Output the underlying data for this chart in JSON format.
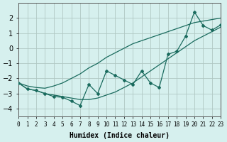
{
  "xlabel": "Humidex (Indice chaleur)",
  "ylabel": "",
  "background_color": "#d6f0ee",
  "grid_color": "#b0c8c4",
  "line_color": "#1a6b5e",
  "xlim": [
    0,
    23
  ],
  "ylim": [
    -4.5,
    3
  ],
  "x_data": [
    0,
    1,
    2,
    3,
    4,
    5,
    6,
    7,
    8,
    9,
    10,
    11,
    12,
    13,
    14,
    15,
    16,
    17,
    18,
    19,
    20,
    21,
    22,
    23
  ],
  "y_main": [
    -2.3,
    -2.7,
    -2.8,
    -3.0,
    -3.2,
    -3.25,
    -3.5,
    -3.8,
    -2.4,
    -3.0,
    -1.5,
    -1.8,
    -2.1,
    -2.4,
    -1.5,
    -2.3,
    -2.6,
    -0.4,
    -0.2,
    0.8,
    2.4,
    1.5,
    1.2,
    1.55
  ],
  "y_upper": [
    -2.3,
    -2.5,
    -2.6,
    -2.65,
    -2.5,
    -2.3,
    -2.0,
    -1.7,
    -1.3,
    -1.0,
    -0.6,
    -0.3,
    0.0,
    0.3,
    0.5,
    0.7,
    0.9,
    1.1,
    1.3,
    1.5,
    1.7,
    1.8,
    1.9,
    2.0
  ],
  "y_lower": [
    -2.3,
    -2.7,
    -2.8,
    -3.0,
    -3.1,
    -3.2,
    -3.3,
    -3.4,
    -3.4,
    -3.3,
    -3.1,
    -2.9,
    -2.6,
    -2.3,
    -1.9,
    -1.5,
    -1.1,
    -0.7,
    -0.3,
    0.1,
    0.5,
    0.8,
    1.1,
    1.4
  ],
  "yticks": [
    -4,
    -3,
    -2,
    -1,
    0,
    1,
    2
  ],
  "xtick_labels": [
    "0",
    "1",
    "2",
    "3",
    "4",
    "5",
    "6",
    "7",
    "8",
    "9",
    "10",
    "11",
    "12",
    "13",
    "14",
    "15",
    "16",
    "17",
    "18",
    "19",
    "20",
    "21",
    "22",
    "23"
  ],
  "figsize": [
    3.2,
    2.0
  ],
  "dpi": 100
}
